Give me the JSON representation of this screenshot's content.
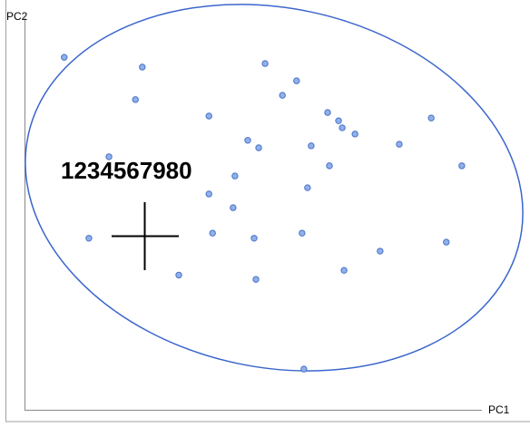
{
  "chart_data": {
    "type": "scatter",
    "x_label": "PC1",
    "y_label": "PC2",
    "annotation": "1234567980",
    "xlim": [
      0,
      100
    ],
    "ylim": [
      0,
      100
    ],
    "color": "#8fb0ea",
    "x": [
      8.7,
      25.8,
      52.7,
      59.6,
      24.3,
      56.5,
      40.4,
      66.4,
      68.8,
      69.6,
      72.4,
      89.1,
      48.9,
      51.3,
      62.8,
      82.1,
      18.5,
      95.8,
      66.8,
      46.1,
      62.0,
      40.4,
      45.7,
      14.1,
      41.2,
      50.3,
      60.8,
      92.4,
      77.9,
      33.8,
      50.7,
      70.0,
      61.2
    ],
    "values": [
      90.0,
      87.5,
      88.4,
      84.0,
      79.2,
      80.3,
      75.0,
      75.9,
      73.8,
      72.0,
      70.4,
      74.5,
      68.8,
      66.9,
      67.4,
      67.8,
      64.6,
      62.3,
      62.3,
      59.7,
      56.7,
      55.1,
      51.6,
      43.8,
      45.1,
      43.8,
      45.1,
      42.8,
      40.5,
      34.4,
      33.3,
      35.6,
      10.4
    ]
  }
}
